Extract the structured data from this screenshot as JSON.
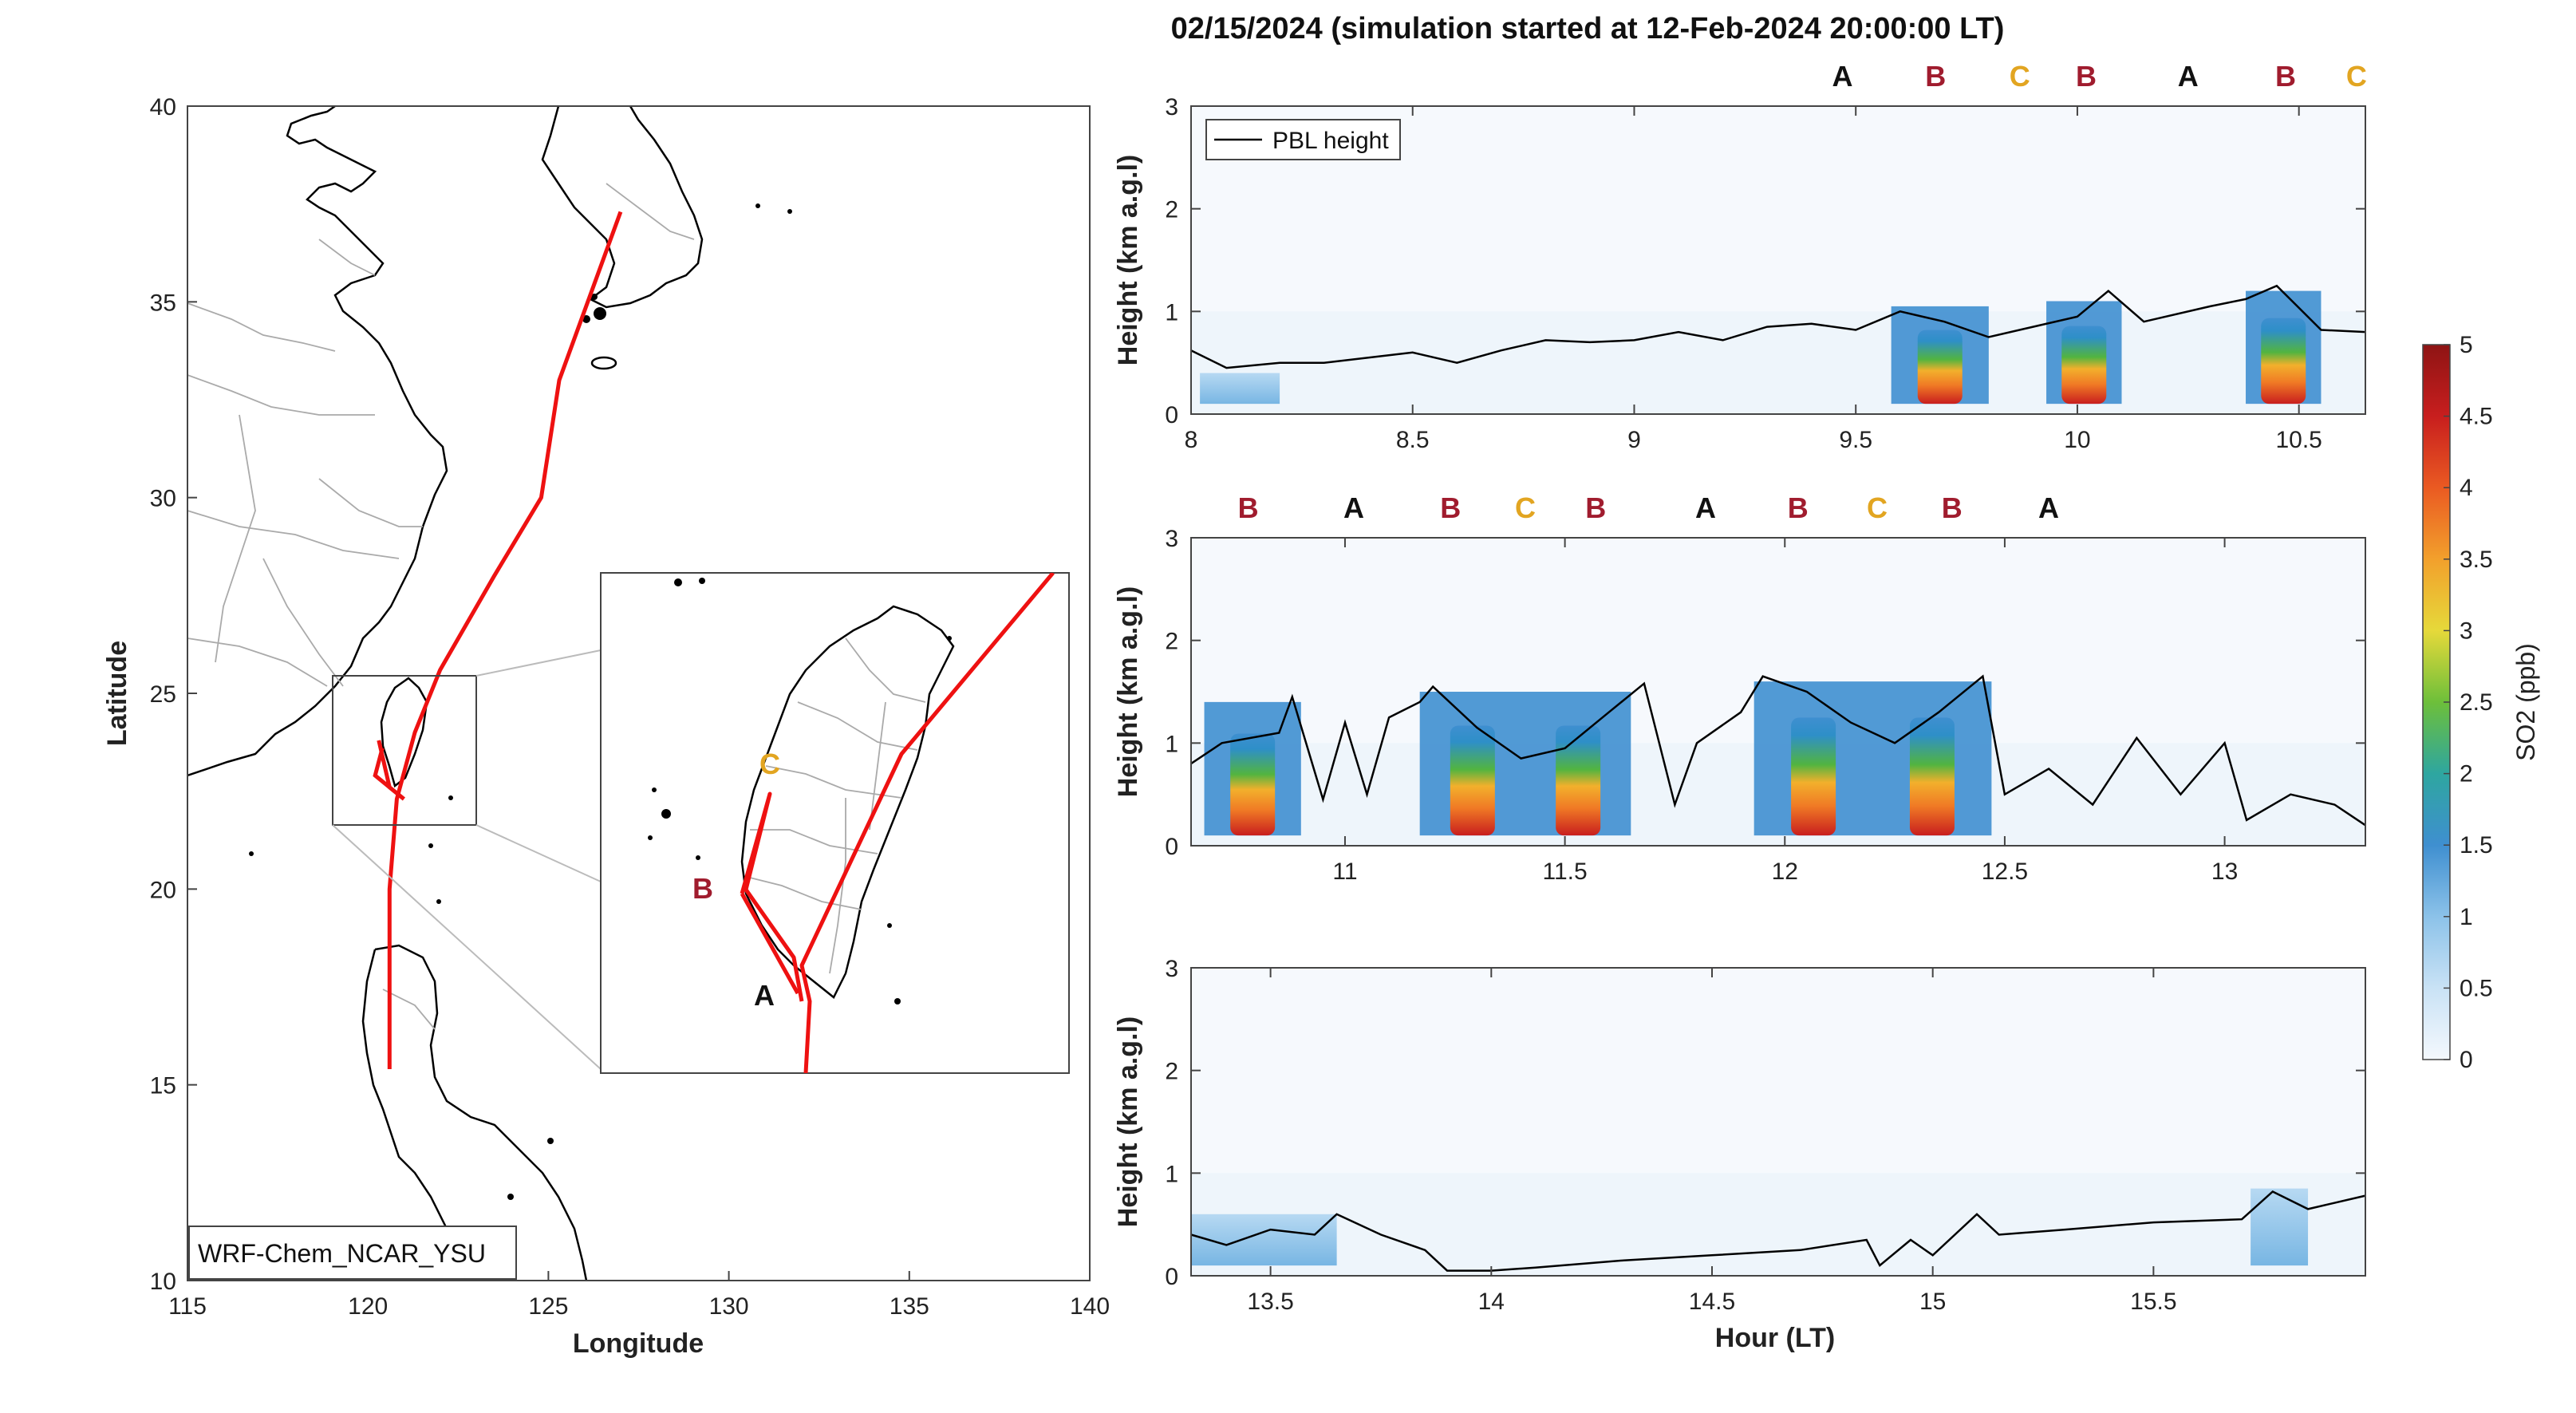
{
  "colors": {
    "route": "#ee1111",
    "coast": "#000000",
    "border": "#aaaaaa",
    "pbl": "#000000",
    "A": "#111111",
    "B": "#a01c2e",
    "C": "#e2a521"
  },
  "chart_data": [
    {
      "type": "map",
      "xlabel": "Longitude",
      "ylabel": "Latitude",
      "xlim": [
        115,
        140
      ],
      "ylim": [
        10,
        40
      ],
      "xticks": [
        "115",
        "120",
        "125",
        "130",
        "135",
        "140"
      ],
      "yticks": [
        "10",
        "15",
        "20",
        "25",
        "30",
        "35",
        "40"
      ],
      "model_label": "WRF-Chem_NCAR_YSU",
      "flight_track": [
        {
          "lon": 127.0,
          "lat": 37.3
        },
        {
          "lon": 125.3,
          "lat": 33.0
        },
        {
          "lon": 124.8,
          "lat": 30.0
        },
        {
          "lon": 123.5,
          "lat": 28.0
        },
        {
          "lon": 122.0,
          "lat": 25.6
        },
        {
          "lon": 121.3,
          "lat": 24.0
        },
        {
          "lon": 120.8,
          "lat": 22.3
        },
        {
          "lon": 120.6,
          "lat": 20.0
        },
        {
          "lon": 120.6,
          "lat": 17.0
        },
        {
          "lon": 120.6,
          "lat": 15.4
        }
      ],
      "inset_labels": [
        "A",
        "B",
        "C"
      ]
    },
    {
      "type": "heatmap",
      "title": "02/15/2024 (simulation started at 12-Feb-2024 20:00:00 LT)",
      "xlabel": "Hour (LT)",
      "ylabel": "Height (km a.g.l)",
      "legend": [
        "PBL height"
      ],
      "colorbar": {
        "label": "SO2 (ppb)",
        "range": [
          0,
          5
        ],
        "ticks": [
          "0",
          "0.5",
          "1",
          "1.5",
          "2",
          "2.5",
          "3",
          "3.5",
          "4",
          "4.5",
          "5"
        ]
      },
      "panels": [
        {
          "xlim": [
            8,
            10.65
          ],
          "ylim": [
            0,
            3
          ],
          "xticks": [
            "8",
            "8.5",
            "9",
            "9.5",
            "10",
            "10.5"
          ],
          "yticks": [
            "0",
            "1",
            "2",
            "3"
          ],
          "markers": [
            {
              "label": "A",
              "x": 9.47
            },
            {
              "label": "B",
              "x": 9.68
            },
            {
              "label": "C",
              "x": 9.87
            },
            {
              "label": "B",
              "x": 10.02
            },
            {
              "label": "A",
              "x": 10.25
            },
            {
              "label": "B",
              "x": 10.47
            },
            {
              "label": "C",
              "x": 10.63
            }
          ],
          "pbl": [
            [
              8.0,
              0.62
            ],
            [
              8.08,
              0.45
            ],
            [
              8.2,
              0.5
            ],
            [
              8.3,
              0.5
            ],
            [
              8.4,
              0.55
            ],
            [
              8.5,
              0.6
            ],
            [
              8.6,
              0.5
            ],
            [
              8.7,
              0.62
            ],
            [
              8.8,
              0.72
            ],
            [
              8.9,
              0.7
            ],
            [
              9.0,
              0.72
            ],
            [
              9.1,
              0.8
            ],
            [
              9.2,
              0.72
            ],
            [
              9.3,
              0.85
            ],
            [
              9.4,
              0.88
            ],
            [
              9.5,
              0.82
            ],
            [
              9.6,
              1.0
            ],
            [
              9.7,
              0.9
            ],
            [
              9.8,
              0.75
            ],
            [
              9.9,
              0.85
            ],
            [
              10.0,
              0.95
            ],
            [
              10.07,
              1.2
            ],
            [
              10.15,
              0.9
            ],
            [
              10.3,
              1.05
            ],
            [
              10.38,
              1.12
            ],
            [
              10.45,
              1.25
            ],
            [
              10.55,
              0.82
            ],
            [
              10.65,
              0.8
            ]
          ],
          "plumes": [
            {
              "x0": 9.58,
              "x1": 9.8,
              "top_km": 1.05,
              "peak_ppb": 4.8
            },
            {
              "x0": 9.93,
              "x1": 10.1,
              "top_km": 1.1,
              "peak_ppb": 4.4
            },
            {
              "x0": 10.38,
              "x1": 10.55,
              "top_km": 1.2,
              "peak_ppb": 4.0
            },
            {
              "x0": 8.02,
              "x1": 8.2,
              "top_km": 0.4,
              "peak_ppb": 1.2
            }
          ]
        },
        {
          "xlim": [
            10.65,
            13.32
          ],
          "ylim": [
            0,
            3
          ],
          "xticks": [
            "11",
            "11.5",
            "12",
            "12.5",
            "13"
          ],
          "yticks": [
            "0",
            "1",
            "2",
            "3"
          ],
          "markers": [
            {
              "label": "B",
              "x": 10.78
            },
            {
              "label": "A",
              "x": 11.02
            },
            {
              "label": "B",
              "x": 11.24
            },
            {
              "label": "C",
              "x": 11.41
            },
            {
              "label": "B",
              "x": 11.57
            },
            {
              "label": "A",
              "x": 11.82
            },
            {
              "label": "B",
              "x": 12.03
            },
            {
              "label": "C",
              "x": 12.21
            },
            {
              "label": "B",
              "x": 12.38
            },
            {
              "label": "A",
              "x": 12.6
            }
          ],
          "pbl": [
            [
              10.65,
              0.8
            ],
            [
              10.72,
              1.0
            ],
            [
              10.85,
              1.1
            ],
            [
              10.88,
              1.45
            ],
            [
              10.95,
              0.45
            ],
            [
              11.0,
              1.2
            ],
            [
              11.05,
              0.5
            ],
            [
              11.1,
              1.25
            ],
            [
              11.17,
              1.4
            ],
            [
              11.2,
              1.55
            ],
            [
              11.3,
              1.15
            ],
            [
              11.4,
              0.85
            ],
            [
              11.5,
              0.95
            ],
            [
              11.6,
              1.3
            ],
            [
              11.68,
              1.58
            ],
            [
              11.75,
              0.4
            ],
            [
              11.8,
              1.0
            ],
            [
              11.9,
              1.3
            ],
            [
              11.95,
              1.65
            ],
            [
              12.05,
              1.5
            ],
            [
              12.15,
              1.2
            ],
            [
              12.25,
              1.0
            ],
            [
              12.35,
              1.3
            ],
            [
              12.45,
              1.65
            ],
            [
              12.5,
              0.5
            ],
            [
              12.6,
              0.75
            ],
            [
              12.7,
              0.4
            ],
            [
              12.8,
              1.05
            ],
            [
              12.9,
              0.5
            ],
            [
              13.0,
              1.0
            ],
            [
              13.05,
              0.25
            ],
            [
              13.15,
              0.5
            ],
            [
              13.25,
              0.4
            ],
            [
              13.32,
              0.2
            ]
          ],
          "plumes": [
            {
              "x0": 10.68,
              "x1": 10.9,
              "top_km": 1.4,
              "peak_ppb": 4.8
            },
            {
              "x0": 11.17,
              "x1": 11.65,
              "top_km": 1.5,
              "peak_ppb": 4.2
            },
            {
              "x0": 11.93,
              "x1": 12.47,
              "top_km": 1.6,
              "peak_ppb": 4.3
            }
          ]
        },
        {
          "xlim": [
            13.32,
            15.98
          ],
          "ylim": [
            0,
            3
          ],
          "xticks": [
            "13.5",
            "14",
            "14.5",
            "15",
            "15.5"
          ],
          "yticks": [
            "0",
            "1",
            "2",
            "3"
          ],
          "markers": [],
          "pbl": [
            [
              13.32,
              0.4
            ],
            [
              13.4,
              0.3
            ],
            [
              13.5,
              0.45
            ],
            [
              13.6,
              0.4
            ],
            [
              13.65,
              0.6
            ],
            [
              13.75,
              0.4
            ],
            [
              13.85,
              0.25
            ],
            [
              13.9,
              0.05
            ],
            [
              14.0,
              0.05
            ],
            [
              14.1,
              0.08
            ],
            [
              14.3,
              0.15
            ],
            [
              14.5,
              0.2
            ],
            [
              14.7,
              0.25
            ],
            [
              14.85,
              0.35
            ],
            [
              14.88,
              0.1
            ],
            [
              14.95,
              0.35
            ],
            [
              15.0,
              0.2
            ],
            [
              15.1,
              0.6
            ],
            [
              15.15,
              0.4
            ],
            [
              15.3,
              0.45
            ],
            [
              15.5,
              0.52
            ],
            [
              15.7,
              0.55
            ],
            [
              15.77,
              0.82
            ],
            [
              15.85,
              0.65
            ],
            [
              15.98,
              0.78
            ]
          ],
          "plumes": [
            {
              "x0": 13.32,
              "x1": 13.65,
              "top_km": 0.6,
              "peak_ppb": 1.2
            },
            {
              "x0": 15.72,
              "x1": 15.85,
              "top_km": 0.85,
              "peak_ppb": 1.0
            }
          ]
        }
      ]
    }
  ]
}
